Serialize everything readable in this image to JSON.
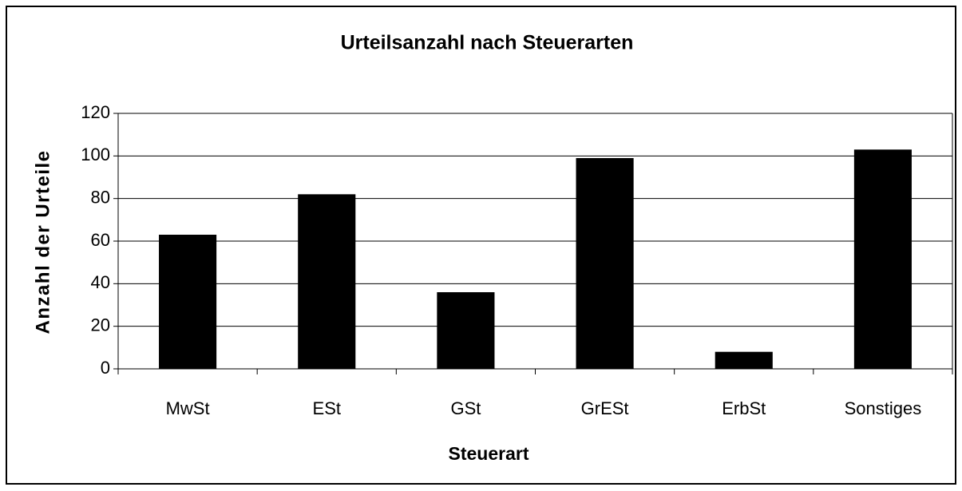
{
  "chart_data": {
    "type": "bar",
    "title": "Urteilsanzahl nach Steuerarten",
    "x_label": "Steuerart",
    "y_label": "Anzahl der Urteile",
    "categories": [
      "MwSt",
      "ESt",
      "GSt",
      "GrESt",
      "ErbSt",
      "Sonstiges"
    ],
    "values": [
      63,
      82,
      36,
      99,
      8,
      103
    ],
    "color": "#000000",
    "ylim": [
      0,
      120
    ],
    "yticks": [
      0,
      20,
      40,
      60,
      80,
      100,
      120
    ],
    "grid": true
  }
}
